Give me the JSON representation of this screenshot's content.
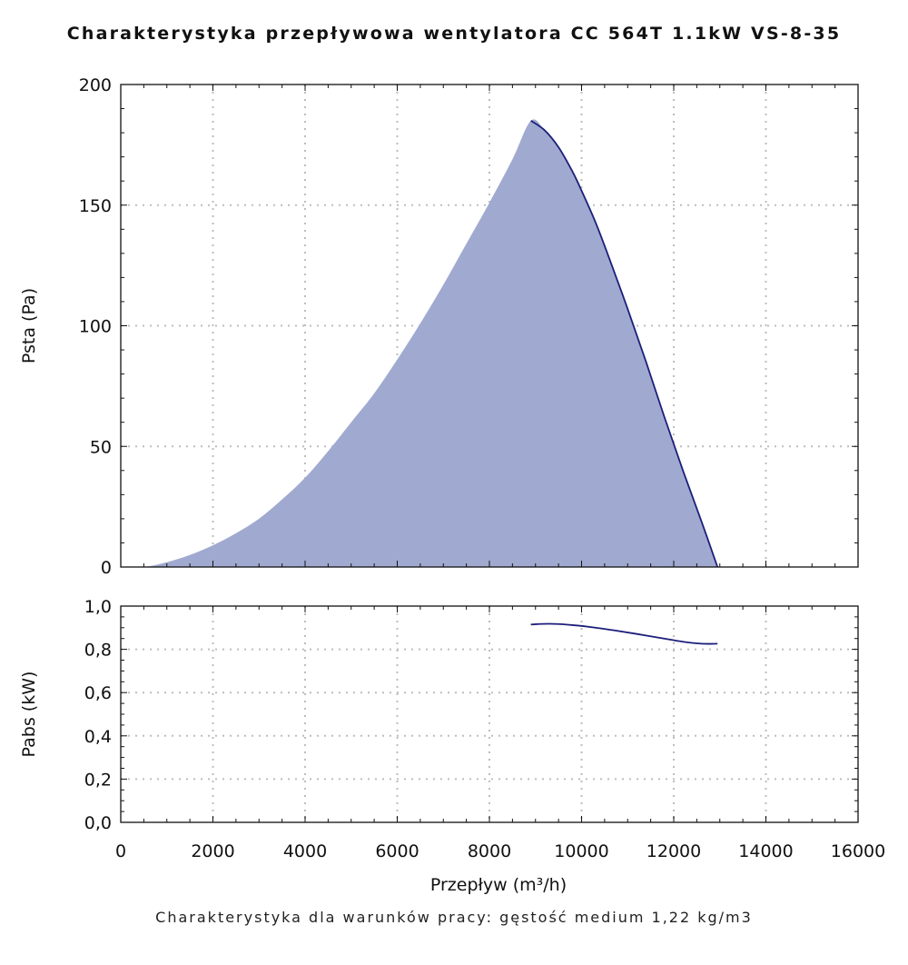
{
  "title": "Charakterystyka przepływowa wentylatora CC 564T 1.1kW VS-8-35",
  "footer": "Charakterystyka dla warunków pracy: gęstość medium 1,22 kg/m3",
  "colors": {
    "line": "#1b1f7a",
    "fill": "#a0aad0",
    "grid": "#bdbdbd",
    "axis": "#111111"
  },
  "chart_data": [
    {
      "type": "area",
      "xlabel": "",
      "ylabel": "Psta (Pa)",
      "xlim": [
        0,
        16000
      ],
      "ylim": [
        0,
        200
      ],
      "grid": true,
      "y_ticks": [
        "0",
        "50",
        "100",
        "150",
        "200"
      ],
      "series": [
        {
          "x": [
            0,
            500,
            1000,
            1500,
            2000,
            2500,
            3000,
            3500,
            4000,
            4500,
            5000,
            5500,
            6000,
            6500,
            7000,
            7500,
            8000,
            8500,
            8900
          ],
          "y": [
            0,
            0,
            2,
            5,
            9,
            14,
            20,
            28,
            37,
            48,
            60,
            72,
            86,
            101,
            117,
            134,
            151,
            169,
            185
          ]
        },
        {
          "x": [
            8900,
            9200,
            9500,
            9800,
            10000,
            10300,
            10600,
            11000,
            11400,
            11800,
            12200,
            12600,
            12950
          ],
          "y": [
            185,
            181,
            174,
            164,
            156,
            143,
            128,
            107,
            85,
            62,
            40,
            19,
            0
          ]
        }
      ]
    },
    {
      "type": "line",
      "xlabel": "Przepływ (m³/h)",
      "ylabel": "Pabs (kW)",
      "xlim": [
        0,
        16000
      ],
      "ylim": [
        0,
        1.0
      ],
      "grid": true,
      "x_ticks": [
        "0",
        "2000",
        "4000",
        "6000",
        "8000",
        "10000",
        "12000",
        "14000",
        "16000"
      ],
      "y_ticks": [
        "0,0",
        "0,2",
        "0,4",
        "0,6",
        "0,8",
        "1,0"
      ],
      "series": [
        {
          "x": [
            8900,
            9300,
            9700,
            10200,
            10700,
            11200,
            11700,
            12200,
            12600,
            12950
          ],
          "y": [
            0.915,
            0.918,
            0.914,
            0.903,
            0.888,
            0.871,
            0.853,
            0.835,
            0.826,
            0.826
          ]
        }
      ]
    }
  ]
}
